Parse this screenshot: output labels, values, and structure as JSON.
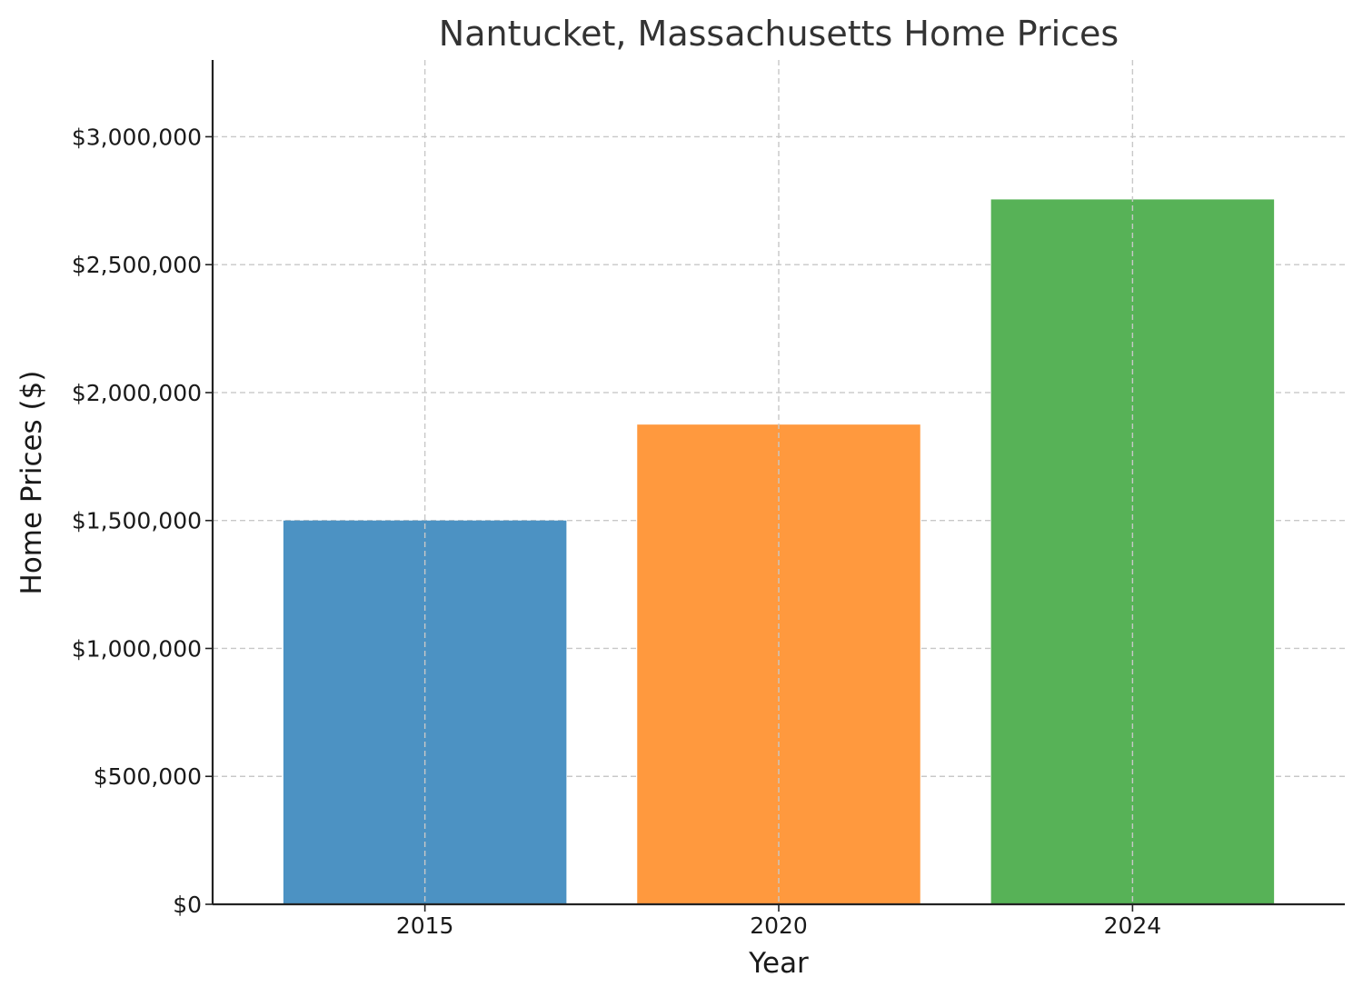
{
  "chart_data": {
    "type": "bar",
    "title": "Nantucket, Massachusetts Home Prices",
    "xlabel": "Year",
    "ylabel": "Home Prices ($)",
    "categories": [
      "2015",
      "2020",
      "2024"
    ],
    "values": [
      1500000,
      1875000,
      2755000
    ],
    "colors": [
      "#4c92c3",
      "#ff993e",
      "#57b257"
    ],
    "ylim": [
      0,
      3300000
    ],
    "yticks": [
      0,
      500000,
      1000000,
      1500000,
      2000000,
      2500000,
      3000000
    ],
    "ytick_labels": [
      "$0",
      "$500,000",
      "$1,000,000",
      "$1,500,000",
      "$2,000,000",
      "$2,500,000",
      "$3,000,000"
    ],
    "grid": true
  }
}
